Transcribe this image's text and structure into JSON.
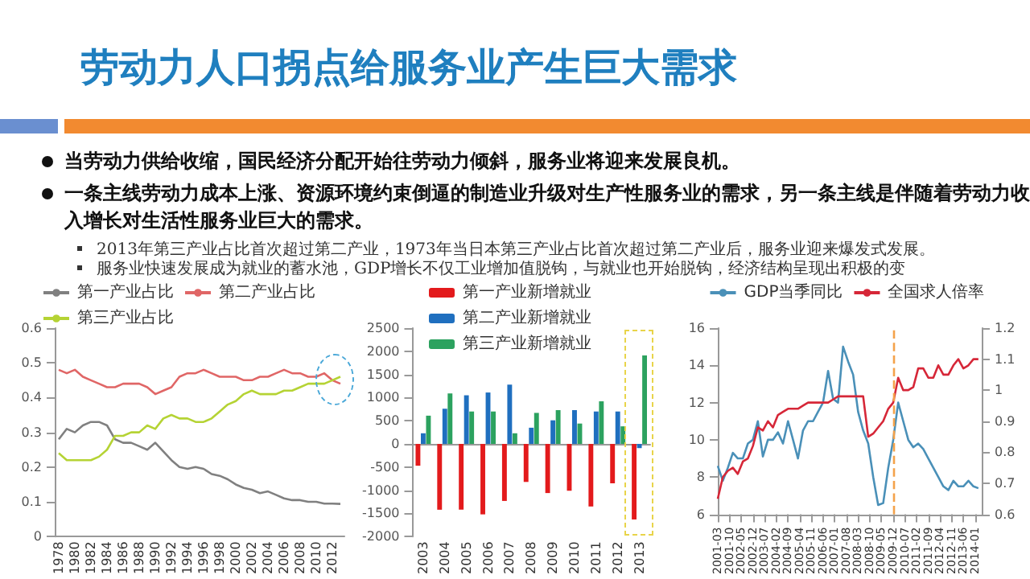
{
  "chart_data": [
    {
      "type": "other",
      "title": "劳动力人口拐点给服务业产生巨大需求",
      "annotations": [
        "当劳动力供给收缩，国民经济分配开始往劳动力倾斜，服务业将迎来发展良机。",
        "一条主线劳动力成本上涨、资源环境约束倒逼的制造业升级对生产性服务业的需求，另一条主线是伴随着劳动力收入增长对生活性服务业巨大的需求。",
        "2013年第三产业占比首次超过第二产业，1973年当日本第三产业占比首次超过第二产业后，服务业迎来爆发式发展。",
        "服务业快速发展成为就业的蓄水池，GDP增长不仅工业增加值脱钩，与就业也开始脱钩，经济结构呈现出积极的变"
      ]
    },
    {
      "type": "line",
      "legend": "top",
      "categories": [
        "1978",
        null,
        "1980",
        null,
        "1982",
        null,
        "1984",
        null,
        "1986",
        null,
        "1988",
        null,
        "1990",
        null,
        "1992",
        null,
        "1994",
        null,
        "1996",
        null,
        "1998",
        null,
        "2000",
        null,
        "2002",
        null,
        "2004",
        null,
        "2006",
        null,
        "2008",
        null,
        "2010",
        null,
        "2012",
        null
      ],
      "ylim": [
        0,
        0.6
      ],
      "yticks": [
        0,
        0.1,
        0.2,
        0.3,
        0.4,
        0.5,
        0.6
      ],
      "series": [
        {
          "name": "第一产业占比",
          "color": "#808080",
          "values": [
            0.28,
            0.31,
            0.3,
            0.32,
            0.33,
            0.33,
            0.32,
            0.28,
            0.27,
            0.27,
            0.26,
            0.25,
            0.27,
            0.245,
            0.22,
            0.2,
            0.195,
            0.2,
            0.195,
            0.18,
            0.175,
            0.165,
            0.15,
            0.14,
            0.135,
            0.125,
            0.13,
            0.12,
            0.11,
            0.105,
            0.105,
            0.1,
            0.1,
            0.095,
            0.095,
            0.094
          ]
        },
        {
          "name": "第二产业占比",
          "color": "#e06666",
          "values": [
            0.48,
            0.47,
            0.48,
            0.46,
            0.45,
            0.44,
            0.43,
            0.43,
            0.44,
            0.44,
            0.44,
            0.43,
            0.41,
            0.42,
            0.43,
            0.46,
            0.47,
            0.47,
            0.48,
            0.47,
            0.46,
            0.46,
            0.46,
            0.45,
            0.45,
            0.46,
            0.46,
            0.47,
            0.48,
            0.47,
            0.47,
            0.46,
            0.46,
            0.47,
            0.45,
            0.44
          ]
        },
        {
          "name": "第三产业占比",
          "color": "#b5d334",
          "values": [
            0.24,
            0.22,
            0.22,
            0.22,
            0.22,
            0.23,
            0.25,
            0.29,
            0.29,
            0.3,
            0.3,
            0.32,
            0.31,
            0.34,
            0.35,
            0.34,
            0.34,
            0.33,
            0.33,
            0.34,
            0.36,
            0.38,
            0.39,
            0.41,
            0.42,
            0.41,
            0.41,
            0.41,
            0.42,
            0.42,
            0.43,
            0.44,
            0.44,
            0.44,
            0.45,
            0.46
          ]
        }
      ]
    },
    {
      "type": "bar",
      "legend": "top",
      "categories": [
        "2003",
        "2004",
        "2005",
        "2006",
        "2007",
        "2008",
        "2009",
        "2010",
        "2011",
        "2012",
        "2013"
      ],
      "ylim": [
        -2000,
        2500
      ],
      "yticks": [
        -2000,
        -1500,
        -1000,
        -500,
        0,
        500,
        1000,
        1500,
        2000,
        2500
      ],
      "series": [
        {
          "name": "第一产业新增就业",
          "color": "#e31a1c",
          "values": [
            -470,
            -1420,
            -1420,
            -1520,
            -1230,
            -820,
            -1060,
            -1010,
            -1350,
            -850,
            -1630
          ]
        },
        {
          "name": "第二产业新增就业",
          "color": "#1f6fbf",
          "values": [
            230,
            760,
            1050,
            1110,
            1280,
            350,
            510,
            730,
            700,
            700,
            -90
          ]
        },
        {
          "name": "第三产业新增就业",
          "color": "#2ca25f",
          "values": [
            610,
            1090,
            700,
            700,
            230,
            670,
            730,
            440,
            920,
            380,
            1910
          ]
        }
      ]
    },
    {
      "type": "line",
      "legend": "top",
      "x": [
        "2001-03",
        "2001-06",
        "2001-09",
        "2001-12",
        "2002-03",
        "2002-06",
        "2002-09",
        "2002-12",
        "2003-03",
        "2003-06",
        "2003-09",
        "2003-12",
        "2004-03",
        "2004-06",
        "2004-09",
        "2004-12",
        "2005-03",
        "2005-06",
        "2005-09",
        "2005-12",
        "2006-03",
        "2006-06",
        "2006-09",
        "2006-12",
        "2007-03",
        "2007-06",
        "2007-09",
        "2007-12",
        "2008-03",
        "2008-06",
        "2008-09",
        "2008-12",
        "2009-03",
        "2009-06",
        "2009-09",
        "2009-12",
        "2010-03",
        "2010-06",
        "2010-09",
        "2010-12",
        "2011-03",
        "2011-06",
        "2011-09",
        "2011-12",
        "2012-03",
        "2012-06",
        "2012-09",
        "2012-12",
        "2013-03",
        "2013-06",
        "2013-09",
        "2013-12",
        "2014-03"
      ],
      "xlim": [
        "2001-03",
        "2014-05"
      ],
      "xticks": [
        "2001-03",
        "2001-10",
        "2002-05",
        "2002-12",
        "2003-07",
        "2004-02",
        "2004-09",
        "2005-04",
        "2005-11",
        "2006-06",
        "2007-01",
        "2007-08",
        "2008-03",
        "2008-10",
        "2009-05",
        "2009-12",
        "2010-07",
        "2011-02",
        "2011-09",
        "2012-04",
        "2012-11",
        "2013-06",
        "2014-01"
      ],
      "ylim": [
        6,
        16
      ],
      "yticks": [
        6,
        8,
        10,
        12,
        14,
        16
      ],
      "y2lim": [
        0.6,
        1.2
      ],
      "y2ticks": [
        0.6,
        0.7,
        0.8,
        0.9,
        1,
        1.1,
        1.2
      ],
      "ref_lines": [
        {
          "axis": "x",
          "value": "2009-12",
          "color": "#f4a24a",
          "line_style": "dashed"
        }
      ],
      "series": [
        {
          "name": "GDP当季同比",
          "color": "#4a90b8",
          "values": [
            8.6,
            7.8,
            8.5,
            9.3,
            9.0,
            9.0,
            9.8,
            10.0,
            11.0,
            9.1,
            10.0,
            10.0,
            10.4,
            9.8,
            11.0,
            10.0,
            9.0,
            10.5,
            11.0,
            11.0,
            11.5,
            12.0,
            13.7,
            12.2,
            12.0,
            15.0,
            14.2,
            13.5,
            11.5,
            10.5,
            9.8,
            8.0,
            6.5,
            6.6,
            8.5,
            10.0,
            12.0,
            11.0,
            10.0,
            9.6,
            9.8,
            9.5,
            9.0,
            8.5,
            8.0,
            7.5,
            7.3,
            7.8,
            7.5,
            7.5,
            7.8,
            7.5,
            7.4
          ]
        },
        {
          "name": "全国求人倍率",
          "color": "#d62738",
          "axis": "y2",
          "values": [
            0.65,
            0.72,
            0.74,
            0.75,
            0.73,
            0.77,
            0.78,
            0.82,
            0.88,
            0.87,
            0.9,
            0.88,
            0.92,
            0.93,
            0.94,
            0.94,
            0.94,
            0.95,
            0.96,
            0.96,
            0.96,
            0.96,
            0.96,
            0.97,
            0.98,
            0.98,
            0.98,
            0.98,
            0.98,
            0.98,
            0.85,
            0.86,
            0.88,
            0.9,
            0.94,
            0.96,
            1.04,
            1.0,
            1.0,
            1.01,
            1.07,
            1.07,
            1.04,
            1.04,
            1.08,
            1.05,
            1.05,
            1.08,
            1.1,
            1.07,
            1.08,
            1.1,
            1.1
          ]
        }
      ]
    }
  ]
}
